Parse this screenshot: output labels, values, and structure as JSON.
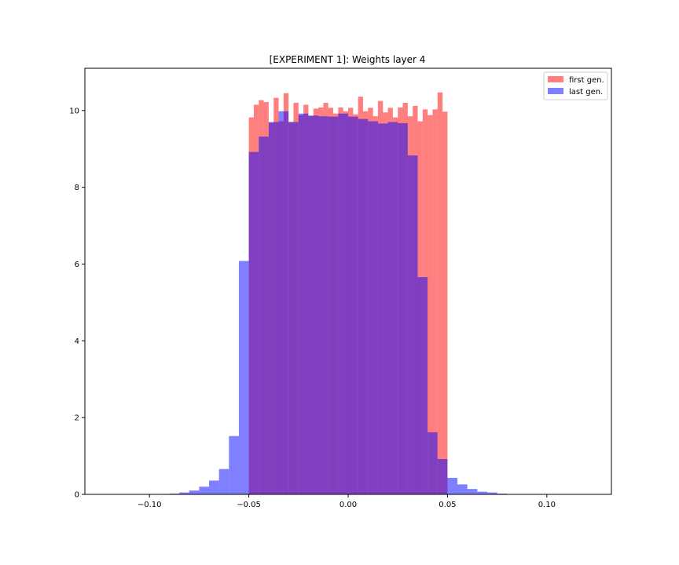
{
  "chart_data": {
    "type": "histogram",
    "title": "[EXPERIMENT 1]: Weights layer 4",
    "xlabel": "",
    "ylabel": "",
    "xlim": [
      -0.1325,
      0.1325
    ],
    "ylim": [
      0,
      11.1
    ],
    "xticks": [
      -0.1,
      -0.05,
      0.0,
      0.05,
      0.1
    ],
    "xtick_labels": [
      "−0.10",
      "−0.05",
      "0.00",
      "0.05",
      "0.10"
    ],
    "yticks": [
      0,
      2,
      4,
      6,
      8,
      10
    ],
    "ytick_labels": [
      "0",
      "2",
      "4",
      "6",
      "8",
      "10"
    ],
    "grid": false,
    "legend_position": "top-right",
    "series": [
      {
        "name": "first gen.",
        "color": "#ff0000",
        "alpha": 0.5,
        "bins": [
          -0.05,
          -0.0475,
          -0.045,
          -0.0425,
          -0.04,
          -0.0375,
          -0.035,
          -0.0325,
          -0.03,
          -0.0275,
          -0.025,
          -0.0225,
          -0.02,
          -0.0175,
          -0.015,
          -0.0125,
          -0.01,
          -0.0075,
          -0.005,
          -0.0025,
          0.0,
          0.0025,
          0.005,
          0.0075,
          0.01,
          0.0125,
          0.015,
          0.0175,
          0.02,
          0.0225,
          0.025,
          0.0275,
          0.03,
          0.0325,
          0.035,
          0.0375,
          0.04,
          0.0425,
          0.045,
          0.0475,
          0.05
        ],
        "values": [
          9.82,
          10.15,
          10.27,
          10.22,
          9.68,
          10.33,
          9.72,
          10.45,
          9.7,
          10.2,
          9.88,
          10.15,
          9.85,
          10.05,
          10.08,
          10.2,
          10.07,
          9.92,
          10.08,
          9.98,
          10.07,
          9.9,
          10.36,
          9.98,
          10.07,
          9.85,
          10.25,
          9.95,
          10.07,
          9.82,
          10.08,
          10.2,
          9.85,
          10.12,
          9.72,
          10.03,
          9.88,
          10.03,
          10.47,
          9.97
        ]
      },
      {
        "name": "last gen.",
        "color": "#0000ff",
        "alpha": 0.5,
        "bins": [
          -0.125,
          -0.12,
          -0.115,
          -0.11,
          -0.105,
          -0.1,
          -0.095,
          -0.09,
          -0.085,
          -0.08,
          -0.075,
          -0.07,
          -0.065,
          -0.06,
          -0.055,
          -0.05,
          -0.045,
          -0.04,
          -0.035,
          -0.03,
          -0.025,
          -0.02,
          -0.015,
          -0.01,
          -0.005,
          0.0,
          0.005,
          0.01,
          0.015,
          0.02,
          0.025,
          0.03,
          0.035,
          0.04,
          0.045,
          0.05,
          0.055,
          0.06,
          0.065,
          0.07,
          0.075,
          0.08,
          0.085,
          0.09,
          0.095,
          0.1,
          0.105,
          0.11,
          0.115,
          0.12,
          0.125
        ],
        "values": [
          0.0,
          0.0,
          0.0,
          0.0,
          0.0,
          0.0,
          0.005,
          0.02,
          0.05,
          0.1,
          0.2,
          0.36,
          0.66,
          1.52,
          6.08,
          8.92,
          9.32,
          9.7,
          9.98,
          9.7,
          9.92,
          9.87,
          9.85,
          9.84,
          9.92,
          9.84,
          9.78,
          9.72,
          9.66,
          9.7,
          9.67,
          8.83,
          5.66,
          1.62,
          0.92,
          0.43,
          0.26,
          0.14,
          0.07,
          0.05,
          0.02,
          0.01,
          0.0,
          0.0,
          0.0,
          0.0,
          0.0,
          0.0,
          0.0,
          0.0
        ]
      }
    ]
  }
}
